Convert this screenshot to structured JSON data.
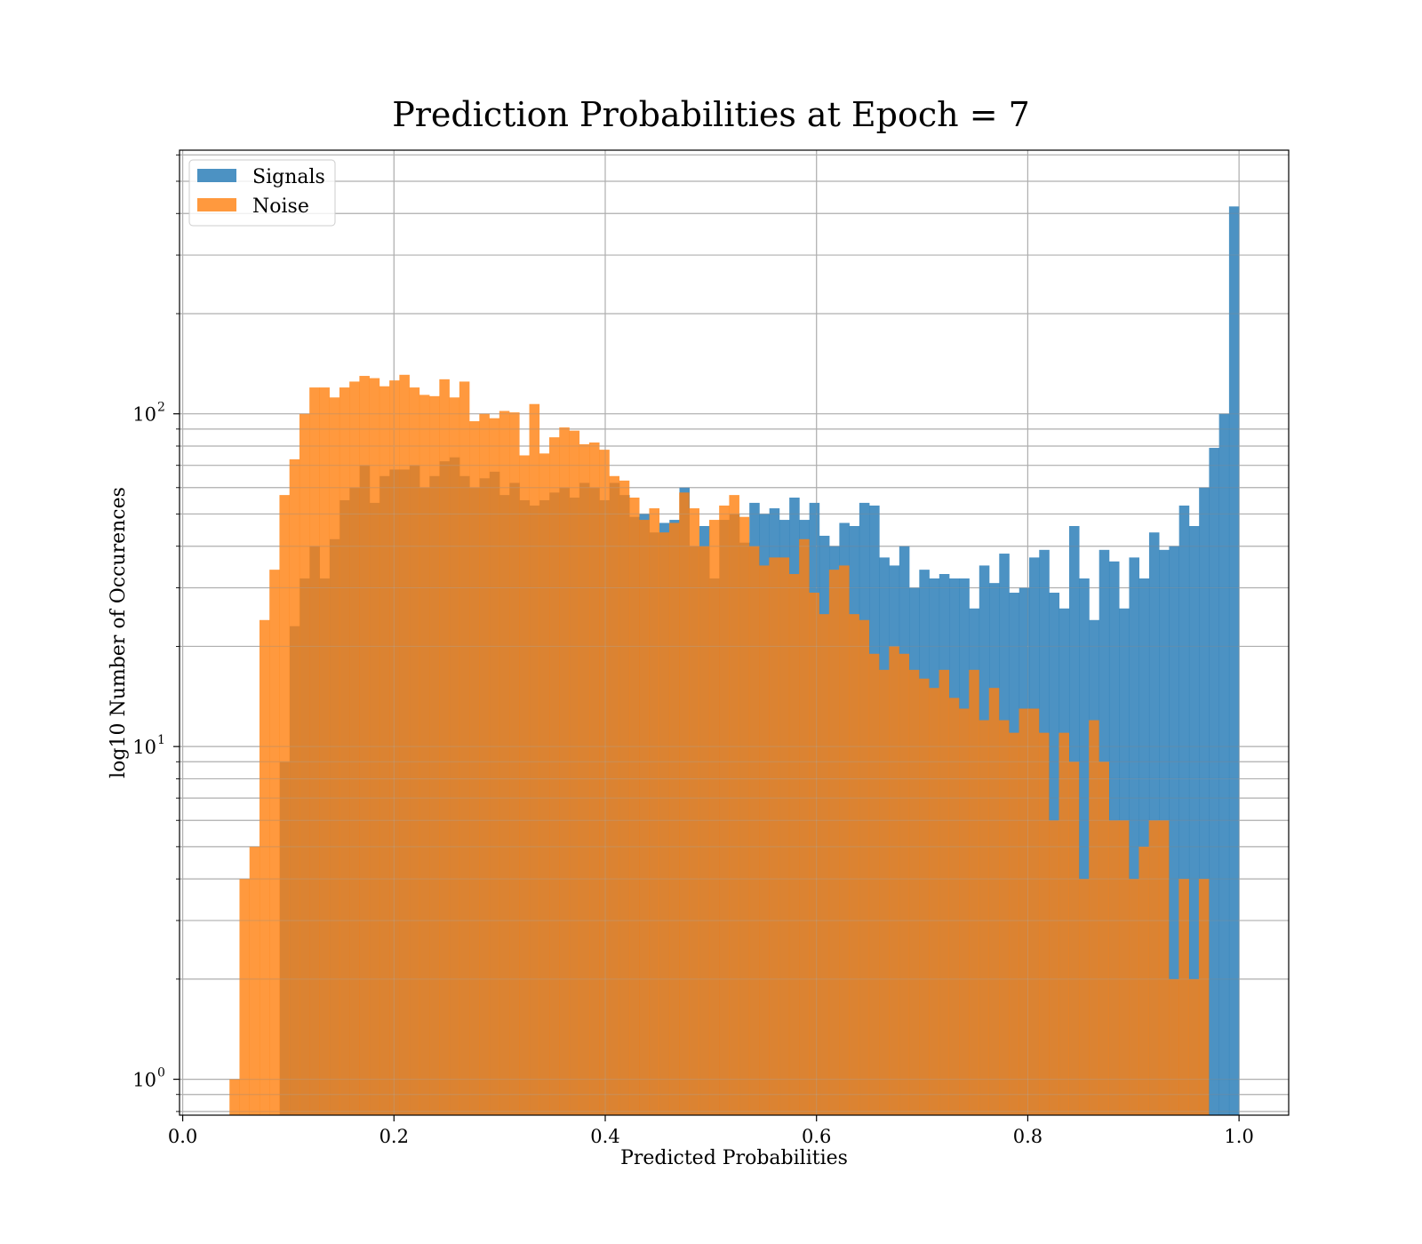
{
  "chart_data": {
    "type": "bar",
    "title": "Prediction Probabilities at Epoch = 7",
    "xlabel": "Predicted Probabilities",
    "ylabel": "log10 Number of Occurences",
    "xlim": [
      -0.003,
      1.047
    ],
    "ylim": [
      0.78,
      620
    ],
    "yscale": "log",
    "grid": true,
    "legend": {
      "position": "top-left",
      "entries": [
        "Signals",
        "Noise"
      ]
    },
    "x_ticks": [
      {
        "value": 0.0,
        "label": "0.0"
      },
      {
        "value": 0.2,
        "label": "0.2"
      },
      {
        "value": 0.4,
        "label": "0.4"
      },
      {
        "value": 0.6,
        "label": "0.6"
      },
      {
        "value": 0.8,
        "label": "0.8"
      },
      {
        "value": 1.0,
        "label": "1.0"
      }
    ],
    "y_ticks": [
      {
        "value": 1,
        "base": "10",
        "exp": "0"
      },
      {
        "value": 10,
        "base": "10",
        "exp": "1"
      },
      {
        "value": 100,
        "base": "10",
        "exp": "2"
      }
    ],
    "series": [
      {
        "name": "Signals",
        "color": "#1f77b4",
        "alpha": 0.8,
        "bin_start": 0.054,
        "bin_width": 0.00946,
        "values": [
          0,
          0,
          0,
          0,
          9,
          23,
          32,
          40,
          32,
          42,
          55,
          60,
          70,
          54,
          65,
          68,
          68,
          70,
          60,
          65,
          72,
          74,
          65,
          60,
          64,
          67,
          57,
          62,
          55,
          53,
          55,
          58,
          60,
          56,
          62,
          60,
          55,
          62,
          57,
          49,
          50,
          44,
          47,
          48,
          60,
          40,
          46,
          32,
          48,
          50,
          41,
          54,
          50,
          52,
          48,
          56,
          48,
          54,
          43,
          40,
          47,
          46,
          54,
          53,
          37,
          35,
          40,
          30,
          34,
          32,
          33,
          32,
          32,
          26,
          35,
          31,
          38,
          29,
          30,
          37,
          39,
          29,
          26,
          46,
          32,
          24,
          39,
          36,
          26,
          37,
          32,
          44,
          39,
          40,
          53,
          46,
          60,
          79,
          100,
          420
        ]
      },
      {
        "name": "Noise",
        "color": "#ff7f0e",
        "alpha": 0.8,
        "bin_start": 0.0443,
        "bin_width": 0.00946,
        "values": [
          1,
          4,
          5,
          24,
          34,
          57,
          73,
          100,
          120,
          120,
          112,
          120,
          125,
          130,
          128,
          121,
          126,
          131,
          120,
          114,
          113,
          127,
          112,
          125,
          95,
          100,
          97,
          102,
          101,
          75,
          107,
          76,
          85,
          91,
          89,
          81,
          82,
          78,
          65,
          63,
          56,
          48,
          52,
          44,
          47,
          58,
          52,
          40,
          48,
          53,
          57,
          49,
          40,
          35,
          37,
          37,
          33,
          42,
          29,
          25,
          34,
          35,
          25,
          24,
          19,
          17,
          20,
          19,
          17,
          16,
          15,
          17,
          14,
          13,
          17,
          12,
          15,
          12,
          11,
          13,
          13,
          11,
          6,
          11,
          9,
          4,
          12,
          9,
          6,
          6,
          4,
          5,
          6,
          6,
          2,
          4,
          2,
          4,
          0,
          0
        ]
      }
    ]
  }
}
